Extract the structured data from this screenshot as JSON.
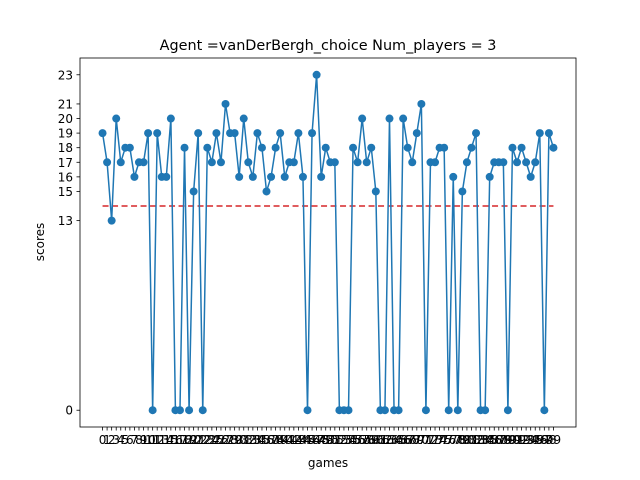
{
  "chart_data": {
    "type": "line",
    "title": "Agent =vanDerBergh_choice Num_players = 3",
    "xlabel": "games",
    "ylabel": "scores",
    "x": [
      0,
      1,
      2,
      3,
      4,
      5,
      6,
      7,
      8,
      9,
      10,
      11,
      12,
      13,
      14,
      15,
      16,
      17,
      18,
      19,
      20,
      21,
      22,
      23,
      24,
      25,
      26,
      27,
      28,
      29,
      30,
      31,
      32,
      33,
      34,
      35,
      36,
      37,
      38,
      39,
      40,
      41,
      42,
      43,
      44,
      45,
      46,
      47,
      48,
      49,
      50,
      51,
      52,
      53,
      54,
      55,
      56,
      57,
      58,
      59,
      60,
      61,
      62,
      63,
      64,
      65,
      66,
      67,
      68,
      69,
      70,
      71,
      72,
      73,
      74,
      75,
      76,
      77,
      78,
      79,
      80,
      81,
      82,
      83,
      84,
      85,
      86,
      87,
      88,
      89,
      90,
      91,
      92,
      93,
      94,
      95,
      96,
      97,
      98,
      99
    ],
    "xtick_labels": [
      "0",
      "1",
      "2",
      "3",
      "4",
      "5",
      "6",
      "7",
      "8",
      "9",
      "10",
      "11",
      "12",
      "13",
      "14",
      "15",
      "16",
      "17",
      "18",
      "19",
      "20",
      "21",
      "22",
      "23",
      "24",
      "25",
      "26",
      "27",
      "28",
      "29",
      "30",
      "31",
      "32",
      "33",
      "34",
      "35",
      "36",
      "37",
      "38",
      "39",
      "40",
      "41",
      "42",
      "43",
      "44",
      "45",
      "46",
      "47",
      "48",
      "49",
      "50",
      "51",
      "52",
      "53",
      "54",
      "55",
      "56",
      "57",
      "58",
      "59",
      "60",
      "61",
      "62",
      "63",
      "64",
      "65",
      "66",
      "67",
      "68",
      "69",
      "70",
      "71",
      "72",
      "73",
      "74",
      "75",
      "76",
      "77",
      "78",
      "79",
      "80",
      "81",
      "82",
      "83",
      "84",
      "85",
      "86",
      "87",
      "88",
      "89",
      "90",
      "91",
      "92",
      "93",
      "94",
      "95",
      "96",
      "97",
      "98",
      "99"
    ],
    "series": [
      {
        "values": [
          19,
          17,
          13,
          20,
          17,
          18,
          18,
          16,
          17,
          17,
          19,
          0,
          19,
          16,
          16,
          20,
          0,
          0,
          18,
          0,
          15,
          19,
          0,
          18,
          17,
          19,
          17,
          21,
          19,
          19,
          16,
          20,
          17,
          16,
          19,
          18,
          15,
          16,
          18,
          19,
          16,
          17,
          17,
          19,
          16,
          0,
          19,
          23,
          16,
          18,
          17,
          17,
          0,
          0,
          0,
          18,
          17,
          20,
          17,
          18,
          15,
          0,
          0,
          20,
          0,
          0,
          20,
          18,
          17,
          19,
          21,
          0,
          17,
          17,
          18,
          18,
          0,
          16,
          0,
          15,
          17,
          18,
          19,
          0,
          0,
          16,
          17,
          17,
          17,
          0,
          18,
          17,
          18,
          17,
          16,
          17,
          19,
          0,
          19,
          18
        ],
        "color": "#1f77b4",
        "marker": "circle"
      }
    ],
    "reference_line": {
      "y": 14,
      "color": "#d62728",
      "style": "dashed"
    },
    "ytick_values": [
      0,
      13,
      15,
      16,
      17,
      18,
      19,
      20,
      21,
      23
    ],
    "xlim": [
      -4.95,
      103.95
    ],
    "ylim": [
      -1.15,
      24.15
    ],
    "grid": false,
    "legend": "none"
  }
}
